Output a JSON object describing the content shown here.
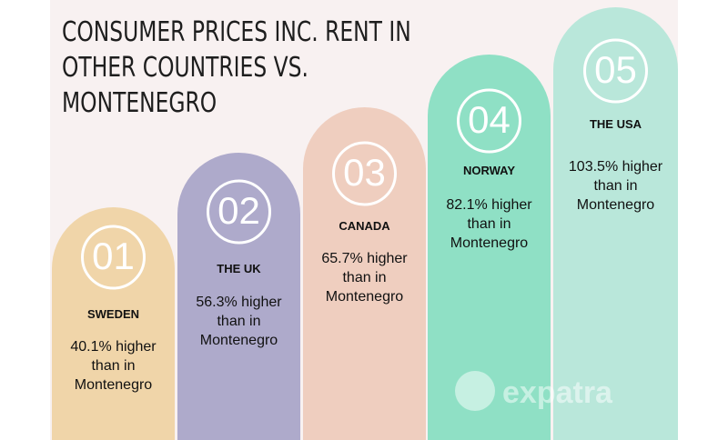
{
  "header": {
    "title_lines": [
      "CONSUMER PRICES INC. RENT IN",
      "OTHER COUNTRIES VS.",
      "MONTENEGRO"
    ]
  },
  "items": [
    {
      "index": "01",
      "country": "SWEDEN",
      "lines": [
        "40.1% higher",
        "than in",
        "Montenegro"
      ]
    },
    {
      "index": "02",
      "country": "THE UK",
      "lines": [
        "56.3% higher",
        "than in",
        "Montenegro"
      ]
    },
    {
      "index": "03",
      "country": "CANADA",
      "lines": [
        "65.7% higher",
        "than in",
        "Montenegro"
      ]
    },
    {
      "index": "04",
      "country": "NORWAY",
      "lines": [
        "82.1% higher",
        "than in",
        "Montenegro"
      ]
    },
    {
      "index": "05",
      "country": "THE USA",
      "lines": [
        "103.5% higher",
        "than in",
        "Montenegro"
      ]
    }
  ],
  "watermark": "expatra"
}
